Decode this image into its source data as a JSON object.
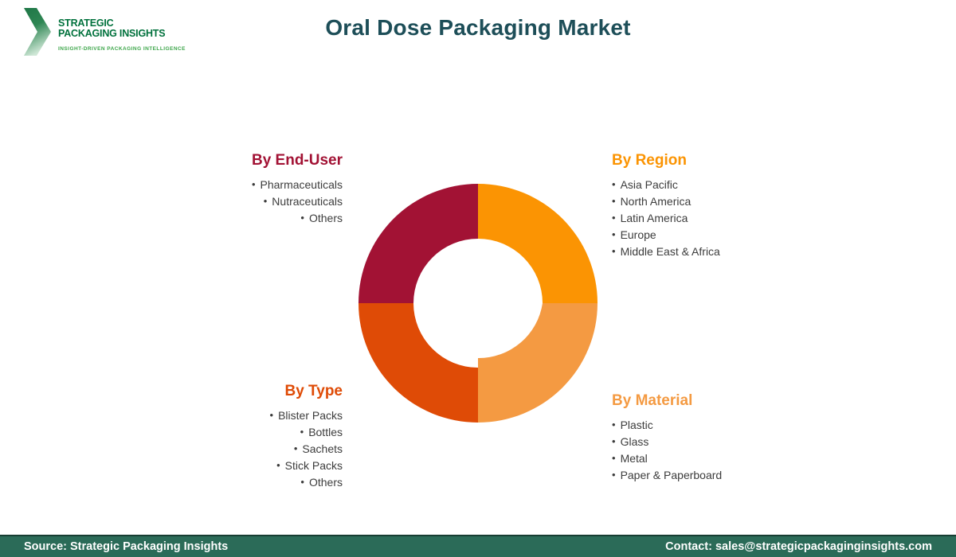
{
  "title": "Oral Dose Packaging Market",
  "logo": {
    "name_line1": "STRATEGIC",
    "name_line2": "PACKAGING INSIGHTS",
    "tagline": "INSIGHT-DRIVEN PACKAGING INTELLIGENCE"
  },
  "colors": {
    "title": "#1D4E58",
    "list_text": "#3C3C3C",
    "end_user": "#A21234",
    "region": "#FB9403",
    "type": "#DF4B06",
    "material": "#F49A42",
    "logo_green_dark": "#00713C",
    "logo_green_light": "#3DA64A",
    "footer_bg": "#2B6B58"
  },
  "segments": {
    "end_user": {
      "heading": "By End-User",
      "items": [
        "Pharmaceuticals",
        "Nutraceuticals",
        "Others"
      ]
    },
    "region": {
      "heading": "By Region",
      "items": [
        "Asia Pacific",
        "North America",
        "Latin America",
        "Europe",
        "Middle East & Africa"
      ]
    },
    "type": {
      "heading": "By Type",
      "items": [
        "Blister Packs",
        "Bottles",
        "Sachets",
        "Stick Packs",
        "Others"
      ]
    },
    "material": {
      "heading": "By Material",
      "items": [
        "Plastic",
        "Glass",
        "Metal",
        "Paper & Paperboard"
      ]
    }
  },
  "chart_data": {
    "type": "pie",
    "subtype": "donut",
    "title": "Oral Dose Packaging Market segmentation",
    "values_shown": false,
    "inner_radius_ratio": 0.54,
    "slices": [
      {
        "label": "By Region",
        "value": 25,
        "color": "#FB9403",
        "position": "top-right"
      },
      {
        "label": "By Material",
        "value": 25,
        "color": "#F49A42",
        "position": "bottom-right"
      },
      {
        "label": "By Type",
        "value": 25,
        "color": "#DF4B06",
        "position": "bottom-left"
      },
      {
        "label": "By End-User",
        "value": 25,
        "color": "#A21234",
        "position": "top-left"
      }
    ]
  },
  "footer": {
    "source": "Source: Strategic Packaging Insights",
    "contact": "Contact: sales@strategicpackaginginsights.com"
  }
}
